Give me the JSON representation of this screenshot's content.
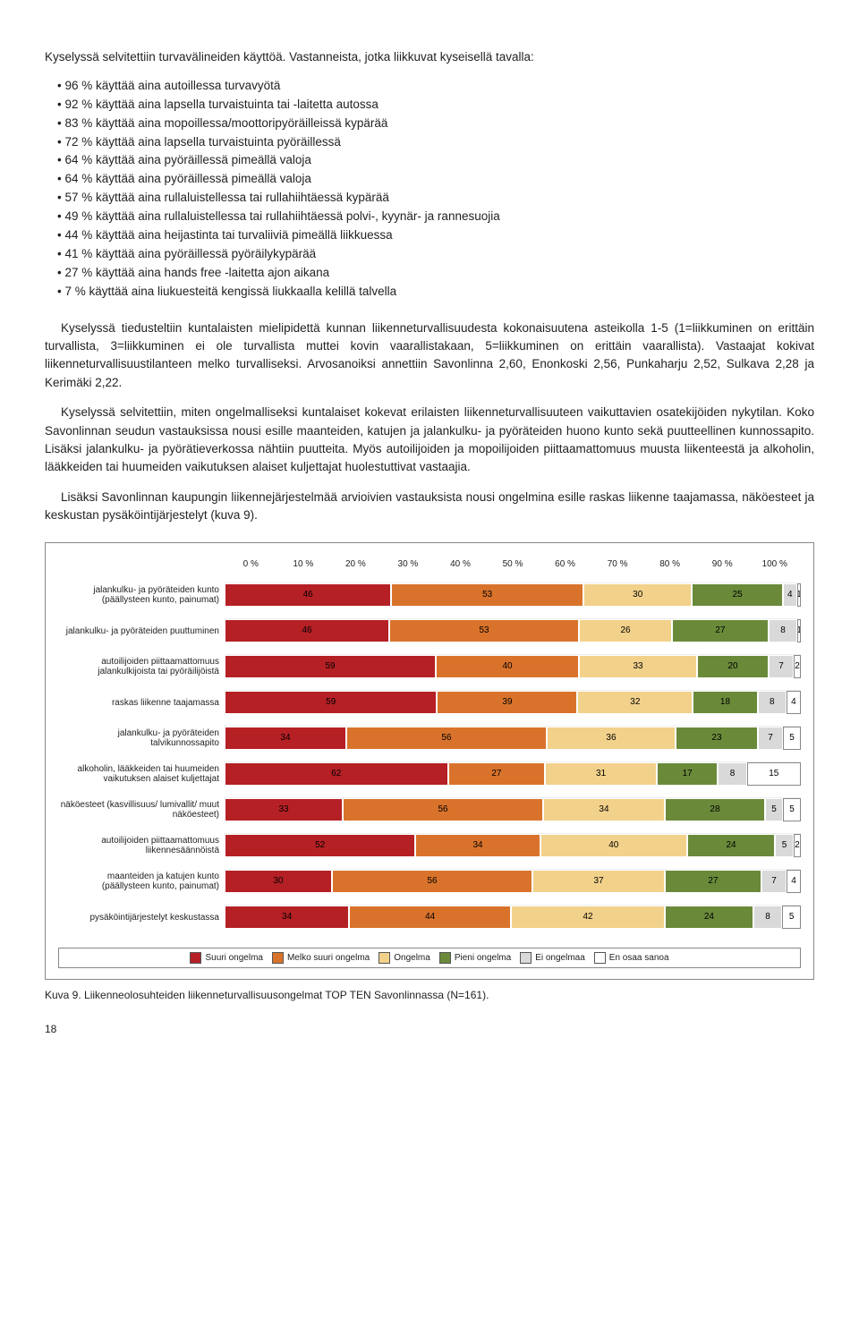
{
  "intro": "Kyselyssä selvitettiin turvavälineiden käyttöä. Vastanneista, jotka liikkuvat kyseisellä tavalla:",
  "bullets": [
    "96 % käyttää aina autoillessa turvavyötä",
    "92 % käyttää aina lapsella turvaistuinta tai -laitetta autossa",
    "83 % käyttää aina mopoillessa/moottoripyöräilleissä kypärää",
    "72 % käyttää aina lapsella turvaistuinta pyöräillessä",
    "64 % käyttää aina pyöräillessä pimeällä valoja",
    "64 % käyttää aina pyöräillessä pimeällä valoja",
    "57 % käyttää aina rullaluistellessa tai rullahiihtäessä kypärää",
    "49 % käyttää aina rullaluistellessa tai rullahiihtäessä polvi-, kyynär- ja rannesuojia",
    "44 % käyttää aina heijastinta tai turvaliiviä pimeällä liikkuessa",
    "41 % käyttää aina pyöräillessä pyöräilykypärää",
    "27 % käyttää aina hands free -laitetta ajon aikana",
    "7 % käyttää aina liukuesteitä kengissä liukkaalla kelillä talvella"
  ],
  "para1": "Kyselyssä tiedusteltiin kuntalaisten mielipidettä kunnan liikenneturvallisuudesta kokonaisuutena asteikolla 1-5 (1=liikkuminen on erittäin turvallista, 3=liikkuminen ei ole turvallista muttei kovin vaarallistakaan, 5=liikkuminen on erittäin vaarallista). Vastaajat kokivat liikenneturvallisuustilanteen melko turvalliseksi. Arvosanoiksi annettiin Savonlinna 2,60, Enonkoski 2,56, Punkaharju 2,52, Sulkava 2,28 ja Kerimäki 2,22.",
  "para2": "Kyselyssä selvitettiin, miten ongelmalliseksi kuntalaiset kokevat erilaisten liikenneturvallisuuteen vaikuttavien osatekijöiden nykytilan. Koko Savonlinnan seudun vastauksissa nousi esille maanteiden, katujen ja jalankulku- ja pyöräteiden huono kunto sekä puutteellinen kunnossapito. Lisäksi jalankulku- ja pyörätieverkossa nähtiin puutteita. Myös autoilijoiden ja mopoilijoiden piittaamattomuus muusta liikenteestä ja alkoholin, lääkkeiden tai huumeiden vaikutuksen alaiset kuljettajat huolestuttivat vastaajia.",
  "para3": "Lisäksi Savonlinnan kaupungin liikennejärjestelmää arvioivien vastauksista nousi ongelmina esille raskas liikenne taajamassa, näköesteet ja keskustan pysäköintijärjestelyt (kuva 9).",
  "chart": {
    "xticks": [
      "0 %",
      "10 %",
      "20 %",
      "30 %",
      "40 %",
      "50 %",
      "60 %",
      "70 %",
      "80 %",
      "90 %",
      "100 %"
    ],
    "colors": [
      "#b52025",
      "#d9732b",
      "#f2d18b",
      "#6a8a3a",
      "#d9d9d9",
      "#ffffff"
    ],
    "legend": [
      "Suuri ongelma",
      "Melko suuri ongelma",
      "Ongelma",
      "Pieni ongelma",
      "Ei ongelmaa",
      "En osaa sanoa"
    ],
    "rows": [
      {
        "label": "jalankulku- ja pyöräteiden kunto (päällysteen kunto, painumat)",
        "seg": [
          46,
          53,
          30,
          25,
          4,
          1
        ]
      },
      {
        "label": "jalankulku- ja pyöräteiden puuttuminen",
        "seg": [
          46,
          53,
          26,
          27,
          8,
          1
        ]
      },
      {
        "label": "autoilijoiden piittaamattomuus jalankulkijoista tai pyöräilijöistä",
        "seg": [
          59,
          40,
          33,
          20,
          7,
          2
        ]
      },
      {
        "label": "raskas liikenne taajamassa",
        "seg": [
          59,
          39,
          32,
          18,
          8,
          4
        ]
      },
      {
        "label": "jalankulku- ja pyöräteiden talvikunnossapito",
        "seg": [
          34,
          56,
          36,
          23,
          7,
          5
        ]
      },
      {
        "label": "alkoholin, lääkkeiden tai huumeiden vaikutuksen alaiset kuljettajat",
        "seg": [
          62,
          27,
          31,
          17,
          8,
          15
        ]
      },
      {
        "label": "näköesteet (kasvillisuus/ lumivallit/ muut näköesteet)",
        "seg": [
          33,
          56,
          34,
          28,
          5,
          5
        ]
      },
      {
        "label": "autoilijoiden piittaamattomuus liikennesäännöistä",
        "seg": [
          52,
          34,
          40,
          24,
          5,
          2
        ]
      },
      {
        "label": "maanteiden ja katujen kunto (päällysteen kunto, painumat)",
        "seg": [
          30,
          56,
          37,
          27,
          7,
          4
        ]
      },
      {
        "label": "pysäköintijärjestelyt keskustassa",
        "seg": [
          34,
          44,
          42,
          24,
          8,
          5
        ]
      }
    ]
  },
  "caption": "Kuva 9. Liikenneolosuhteiden liikenneturvallisuusongelmat TOP TEN Savonlinnassa (N=161).",
  "pagenum": "18"
}
